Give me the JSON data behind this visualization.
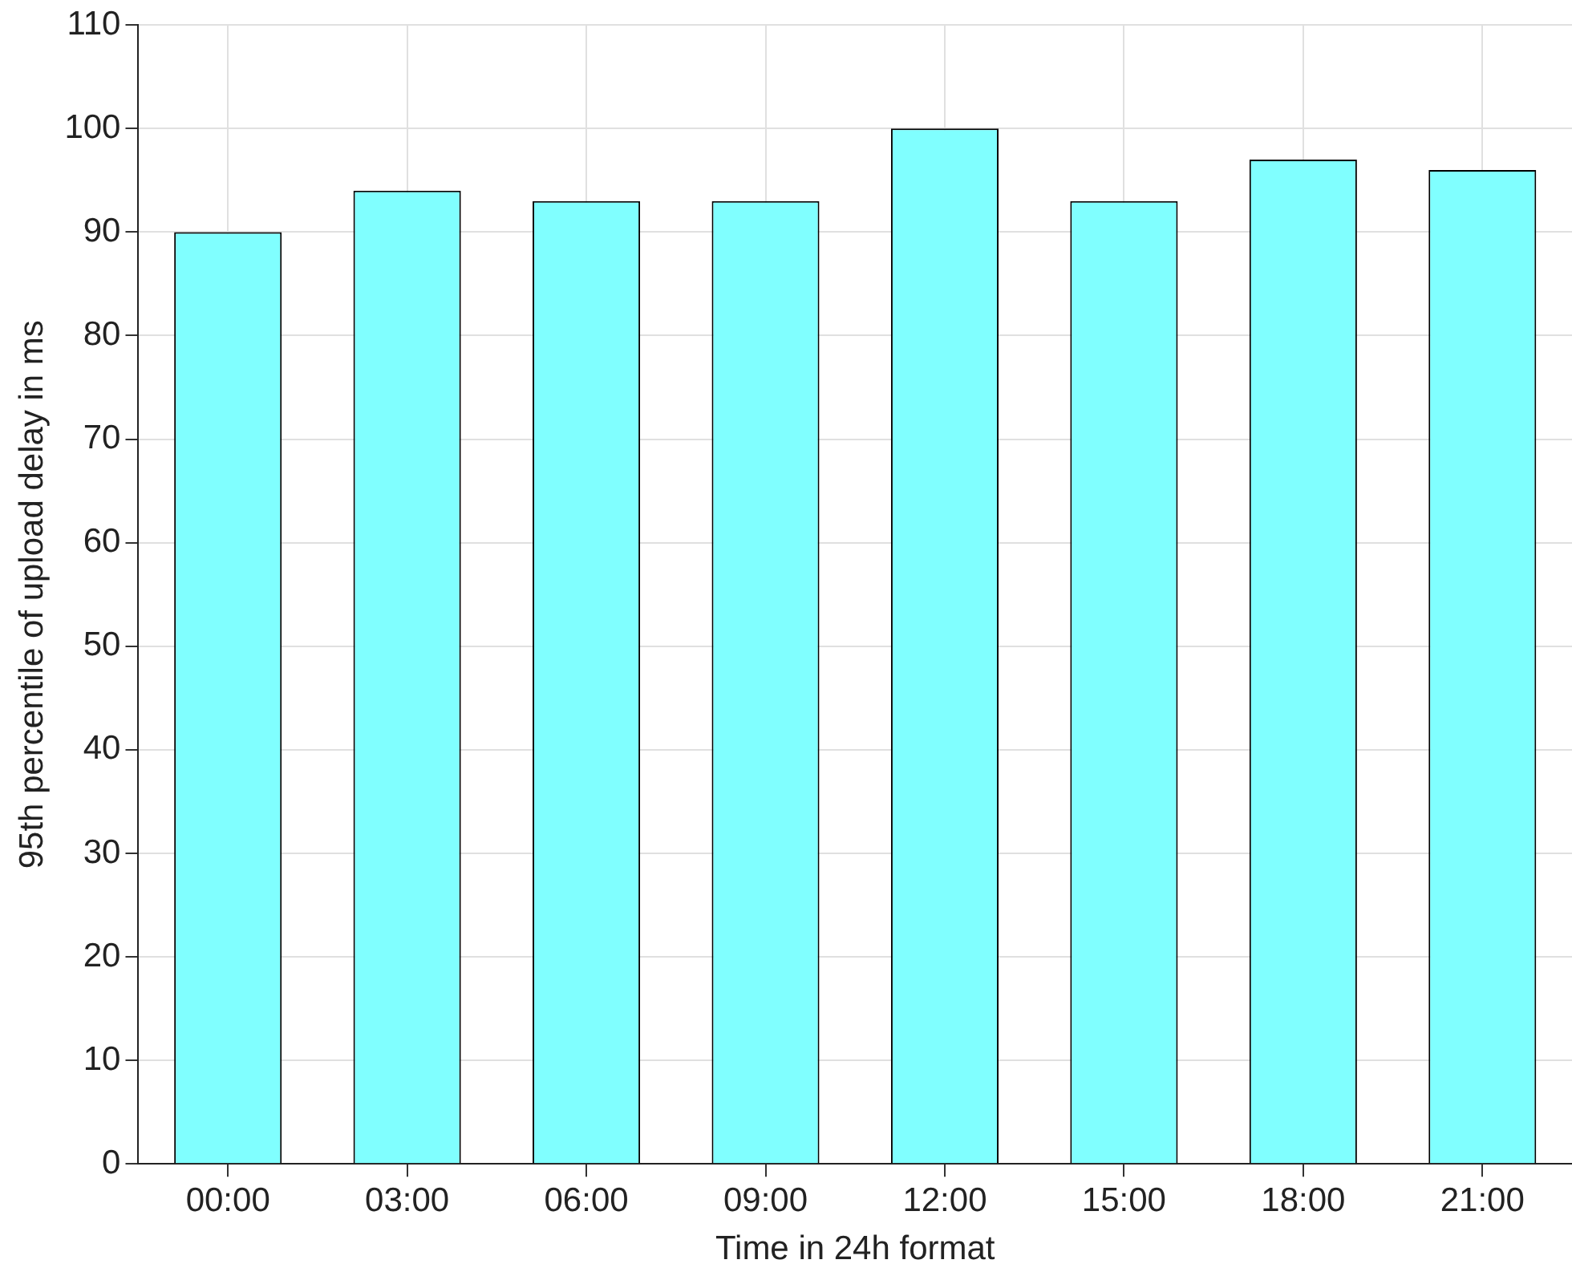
{
  "chart_data": {
    "type": "bar",
    "xlabel": "Time in 24h format",
    "ylabel": "95th percentile of upload delay in ms",
    "categories": [
      "00:00",
      "03:00",
      "06:00",
      "09:00",
      "12:00",
      "15:00",
      "18:00",
      "21:00"
    ],
    "values": [
      90,
      94,
      93,
      93,
      100,
      93,
      97,
      96
    ],
    "color": "#80ffff",
    "ylim": [
      0,
      110
    ],
    "yticks": [
      0,
      10,
      20,
      30,
      40,
      50,
      60,
      70,
      80,
      90,
      100,
      110
    ],
    "grid": true
  }
}
